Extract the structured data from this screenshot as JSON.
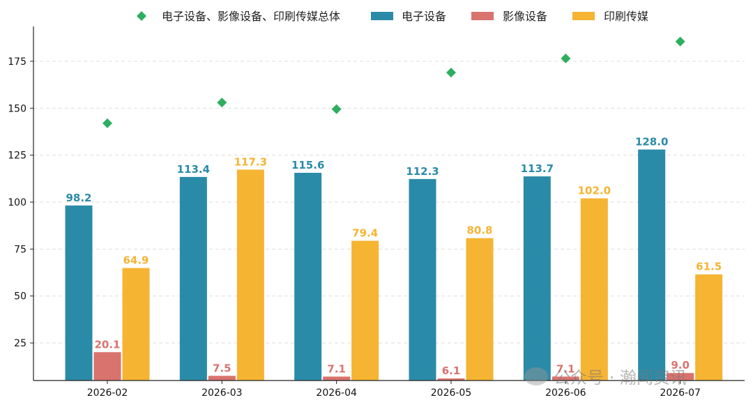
{
  "colors": {
    "total": "#2eae5f",
    "electronic": "#2a8ba8",
    "imaging": "#d9736e",
    "printing": "#f5b432",
    "grid": "#dddddd",
    "axis": "#222222"
  },
  "legend": [
    {
      "key": "total",
      "label": "电子设备、影像设备、印刷传媒总体",
      "marker": "diamond"
    },
    {
      "key": "electronic",
      "label": "电子设备",
      "marker": "bar"
    },
    {
      "key": "imaging",
      "label": "影像设备",
      "marker": "bar"
    },
    {
      "key": "printing",
      "label": "印刷传媒",
      "marker": "bar"
    }
  ],
  "watermark": {
    "text": "公众号 · 瀚闻资讯",
    "icon": "wechat-icon"
  },
  "chart_data": {
    "type": "bar",
    "categories": [
      "2026-02",
      "2026-03",
      "2026-04",
      "2026-05",
      "2026-06",
      "2026-07"
    ],
    "series": [
      {
        "key": "electronic",
        "name": "电子设备",
        "values": [
          98.2,
          113.4,
          115.6,
          112.3,
          113.7,
          128.0
        ],
        "labels": [
          "98.2",
          "113.4",
          "115.6",
          "112.3",
          "113.7",
          "128.0"
        ]
      },
      {
        "key": "imaging",
        "name": "影像设备",
        "values": [
          20.1,
          7.5,
          7.1,
          6.1,
          7.1,
          9.0
        ],
        "labels": [
          "20.1",
          "7.5",
          "7.1",
          "6.1",
          "7.1",
          "9.0"
        ]
      },
      {
        "key": "printing",
        "name": "印刷传媒",
        "values": [
          64.9,
          117.3,
          79.4,
          80.8,
          102.0,
          61.5
        ],
        "labels": [
          "64.9",
          "117.3",
          "79.4",
          "80.8",
          "102.0",
          "61.5"
        ]
      }
    ],
    "overlay": {
      "key": "total",
      "name": "电子设备、影像设备、印刷传媒总体",
      "type": "scatter",
      "marker": "diamond",
      "values": [
        142.0,
        153.0,
        149.5,
        169.0,
        176.5,
        185.5
      ]
    },
    "yticks": [
      "25",
      "50",
      "75",
      "100",
      "125",
      "150",
      "175"
    ],
    "ylim": [
      5,
      195
    ],
    "grid": true,
    "legend_position": "top"
  }
}
